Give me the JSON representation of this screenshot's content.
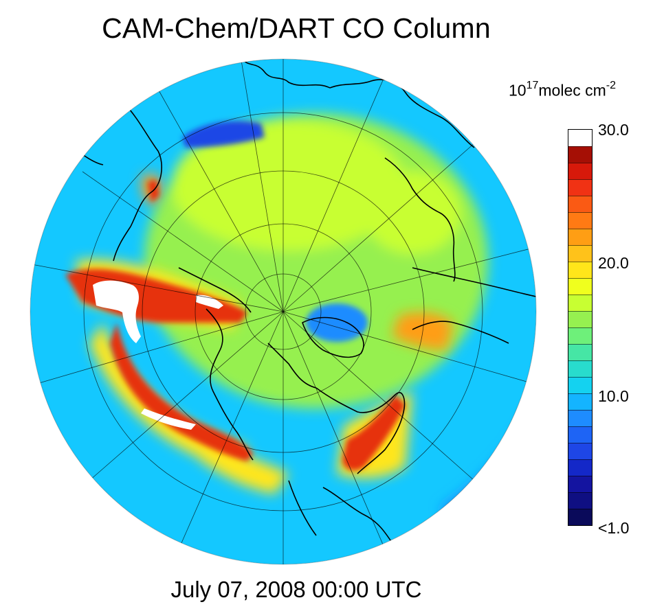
{
  "title": "CAM-Chem/DART CO Column",
  "timestamp": "July 07, 2008 00:00 UTC",
  "colorbar": {
    "unit_base": "10",
    "unit_exp": "17",
    "unit_text": "molec cm",
    "unit_exp2": "-2",
    "tick_labels": [
      "30.0",
      "20.0",
      "10.0",
      "<1.0"
    ],
    "colors": [
      "#ffffff",
      "#a50f05",
      "#d7190a",
      "#f03214",
      "#fa5a14",
      "#ff7a14",
      "#ff9e14",
      "#ffc21a",
      "#ffe61a",
      "#f0ff1e",
      "#c8ff32",
      "#96f050",
      "#6ef07a",
      "#46e6a5",
      "#28dccd",
      "#14d2f0",
      "#14b4ff",
      "#1e8cff",
      "#1e64f5",
      "#1e46e6",
      "#1428c8",
      "#1414a0",
      "#0f0f82",
      "#0a0a5a"
    ]
  },
  "map": {
    "projection": "north-polar-stereographic",
    "palette": {
      "ocean_background": "#14c8ff",
      "outer_rim": "#1e8cff",
      "polar_band": "#96f050",
      "yellow": "#ffe61a",
      "orange": "#ff9e14",
      "red": "#e6320f",
      "dark_red": "#a50f05",
      "white_max": "#ffffff",
      "low_blue": "#1e46e6",
      "coastline": "#000000",
      "graticule": "#000000"
    }
  }
}
